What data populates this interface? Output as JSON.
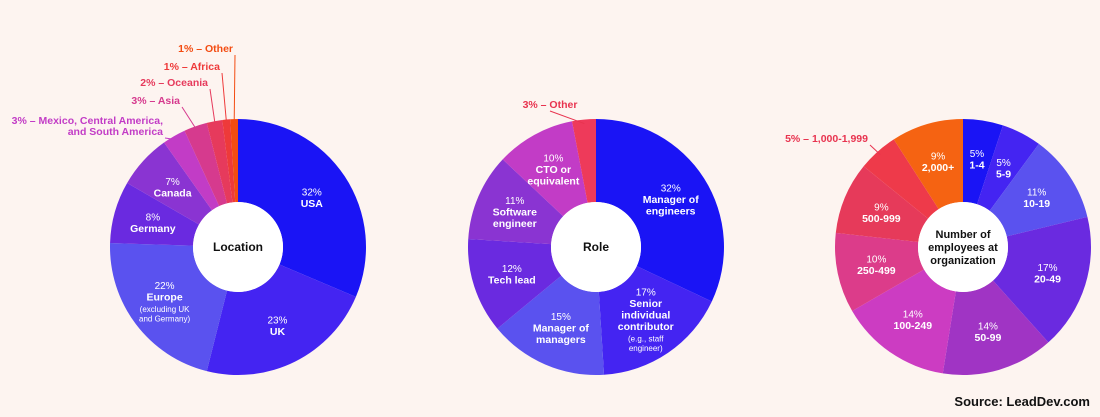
{
  "source": "Source: LeadDev.com",
  "chart_data": [
    {
      "type": "pie",
      "title": "Location",
      "series": [
        {
          "value": 32,
          "pct": "32%",
          "label": "USA",
          "color": "#1a14f5",
          "label_color": "#ffffff"
        },
        {
          "value": 23,
          "pct": "23%",
          "label": "UK",
          "color": "#4424f2",
          "label_color": "#ffffff"
        },
        {
          "value": 22,
          "pct": "22%",
          "label": "Europe",
          "sub": "(excluding UK and Germany)",
          "color": "#5a52ef",
          "label_color": "#ffffff"
        },
        {
          "value": 8,
          "pct": "8%",
          "label": "Germany",
          "color": "#6a2ae0",
          "label_color": "#ffffff"
        },
        {
          "value": 7,
          "pct": "7%",
          "label": "Canada",
          "color": "#8a34d2",
          "label_color": "#ffffff"
        },
        {
          "value": 3,
          "pct": "3%",
          "label": "Mexico, Central America, and South America",
          "outside_label": "3% – Mexico, Central America, and South America",
          "color": "#c23cc6",
          "label_color": "#c23cc6"
        },
        {
          "value": 3,
          "pct": "3%",
          "label": "Asia",
          "outside_label": "3% – Asia",
          "color": "#d63a8e",
          "label_color": "#d63a8e"
        },
        {
          "value": 2,
          "pct": "2%",
          "label": "Oceania",
          "outside_label": "2% – Oceania",
          "color": "#e63a5c",
          "label_color": "#e63a5c"
        },
        {
          "value": 1,
          "pct": "1%",
          "label": "Africa",
          "outside_label": "1% – Africa",
          "color": "#ee3a3a",
          "label_color": "#ee3a3a"
        },
        {
          "value": 1,
          "pct": "1%",
          "label": "Other",
          "outside_label": "1% – Other",
          "color": "#f34c12",
          "label_color": "#f34c12"
        }
      ]
    },
    {
      "type": "pie",
      "title": "Role",
      "series": [
        {
          "value": 32,
          "pct": "32%",
          "label": "Manager of engineers",
          "color": "#1a14f5",
          "label_color": "#ffffff"
        },
        {
          "value": 17,
          "pct": "17%",
          "label": "Senior individual contributor",
          "sub": "(e.g., staff engineer)",
          "color": "#4424f2",
          "label_color": "#ffffff"
        },
        {
          "value": 15,
          "pct": "15%",
          "label": "Manager of managers",
          "color": "#5a52ef",
          "label_color": "#ffffff"
        },
        {
          "value": 12,
          "pct": "12%",
          "label": "Tech lead",
          "color": "#6a2ae0",
          "label_color": "#ffffff"
        },
        {
          "value": 11,
          "pct": "11%",
          "label": "Software engineer",
          "color": "#8a34d2",
          "label_color": "#ffffff"
        },
        {
          "value": 10,
          "pct": "10%",
          "label": "CTO or equivalent",
          "color": "#c23cc6",
          "label_color": "#ffffff"
        },
        {
          "value": 3,
          "pct": "3%",
          "label": "Other",
          "outside_label": "3% – Other",
          "color": "#ee3a5a",
          "label_color": "#e8334f"
        }
      ]
    },
    {
      "type": "pie",
      "title": "Number of employees at organization",
      "series": [
        {
          "value": 5,
          "pct": "5%",
          "label": "1-4",
          "color": "#1a14f5",
          "label_color": "#ffffff"
        },
        {
          "value": 5,
          "pct": "5%",
          "label": "5-9",
          "color": "#4424f2",
          "label_color": "#ffffff"
        },
        {
          "value": 11,
          "pct": "11%",
          "label": "10-19",
          "color": "#5a52ef",
          "label_color": "#ffffff"
        },
        {
          "value": 17,
          "pct": "17%",
          "label": "20-49",
          "color": "#6a2ae0",
          "label_color": "#ffffff"
        },
        {
          "value": 14,
          "pct": "14%",
          "label": "50-99",
          "color": "#a034c4",
          "label_color": "#ffffff"
        },
        {
          "value": 14,
          "pct": "14%",
          "label": "100-249",
          "color": "#cc3cc2",
          "label_color": "#ffffff"
        },
        {
          "value": 10,
          "pct": "10%",
          "label": "250-499",
          "color": "#dc3c8a",
          "label_color": "#ffffff"
        },
        {
          "value": 9,
          "pct": "9%",
          "label": "500-999",
          "color": "#e63a5a",
          "label_color": "#ffffff"
        },
        {
          "value": 5,
          "pct": "5%",
          "label": "1,000-1,999",
          "outside_label": "5% – 1,000-1,999",
          "color": "#ee3a4a",
          "label_color": "#e8334f"
        },
        {
          "value": 9,
          "pct": "9%",
          "label": "2,000+",
          "color": "#f56312",
          "label_color": "#ffffff"
        }
      ]
    }
  ]
}
